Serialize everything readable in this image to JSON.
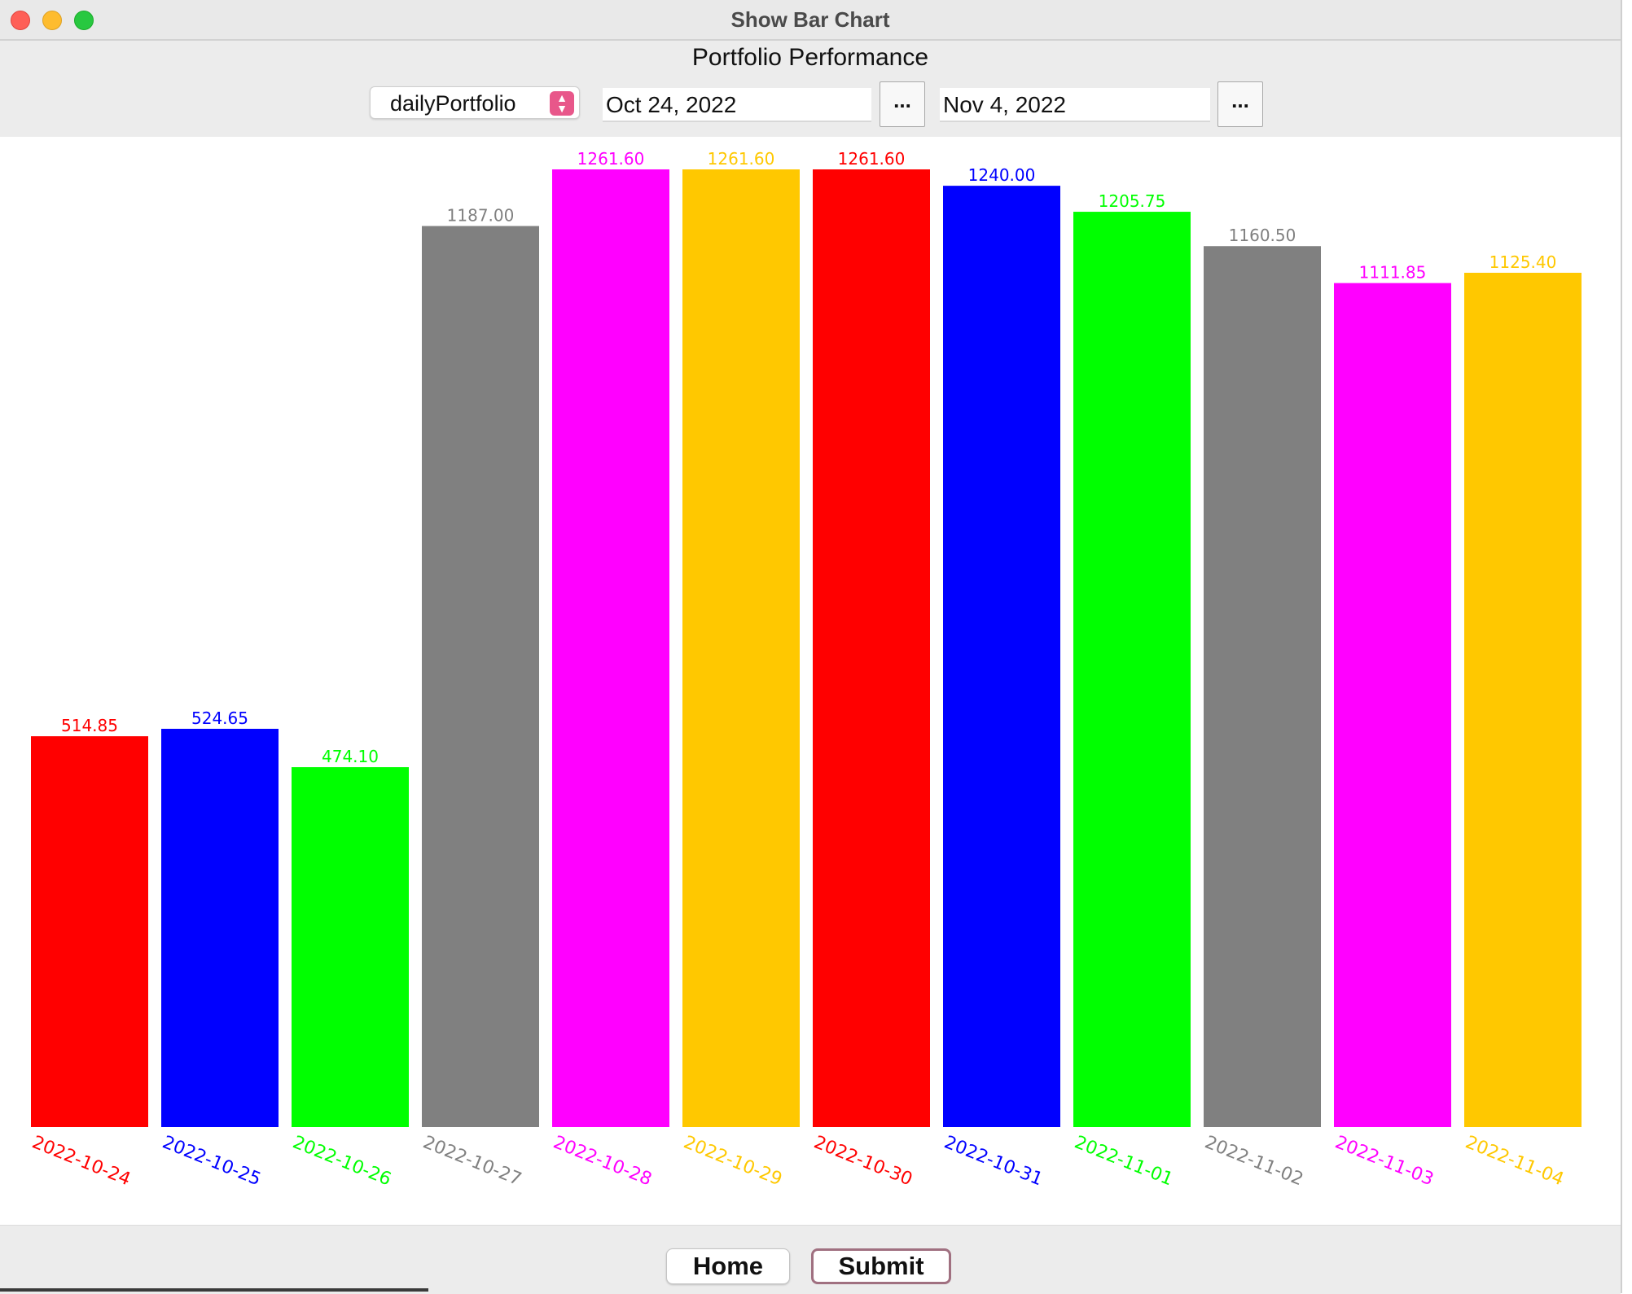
{
  "window": {
    "title": "Show Bar Chart"
  },
  "header": {
    "chart_title": "Portfolio Performance",
    "portfolio_select": {
      "value": "dailyPortfolio"
    },
    "start_date": "Oct 24, 2022",
    "end_date": "Nov 4, 2022",
    "picker_label": "..."
  },
  "footer": {
    "home_label": "Home",
    "submit_label": "Submit"
  },
  "chart_data": {
    "type": "bar",
    "title": "",
    "xlabel": "",
    "ylabel": "",
    "ylim": [
      0,
      1261.6
    ],
    "grid": false,
    "categories": [
      "2022-10-24",
      "2022-10-25",
      "2022-10-26",
      "2022-10-27",
      "2022-10-28",
      "2022-10-29",
      "2022-10-30",
      "2022-10-31",
      "2022-11-01",
      "2022-11-02",
      "2022-11-03",
      "2022-11-04"
    ],
    "values": [
      514.85,
      524.65,
      474.1,
      1187.0,
      1261.6,
      1261.6,
      1261.6,
      1240.0,
      1205.75,
      1160.5,
      1111.85,
      1125.4
    ],
    "value_labels": [
      "514.85",
      "524.65",
      "474.10",
      "1187.00",
      "1261.60",
      "1261.60",
      "1261.60",
      "1240.00",
      "1205.75",
      "1160.50",
      "1111.85",
      "1125.40"
    ],
    "colors": [
      "#ff0000",
      "#0000ff",
      "#00ff00",
      "#808080",
      "#ff00ff",
      "#ffc800",
      "#ff0000",
      "#0000ff",
      "#00ff00",
      "#808080",
      "#ff00ff",
      "#ffc800"
    ]
  }
}
